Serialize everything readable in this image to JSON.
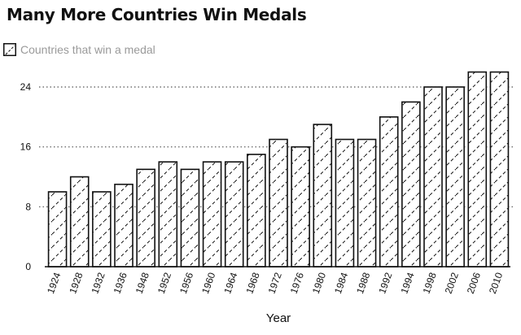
{
  "chart_data": {
    "type": "bar",
    "title": "Many More Countries Win Medals",
    "xlabel": "Year",
    "ylabel": "",
    "categories": [
      "1924",
      "1928",
      "1932",
      "1936",
      "1948",
      "1952",
      "1956",
      "1960",
      "1964",
      "1968",
      "1972",
      "1976",
      "1980",
      "1984",
      "1988",
      "1992",
      "1994",
      "1998",
      "2002",
      "2006",
      "2010"
    ],
    "series": [
      {
        "name": "Countries that win a medal",
        "values": [
          10,
          12,
          10,
          11,
          13,
          14,
          13,
          14,
          14,
          15,
          17,
          16,
          19,
          17,
          17,
          20,
          22,
          24,
          24,
          26,
          26
        ]
      }
    ],
    "ylim": [
      0,
      26
    ],
    "yticks": [
      0,
      8,
      16,
      24
    ],
    "grid": "dotted horizontal",
    "legend": "top-left",
    "pattern": "diagonal hatch",
    "colors": {
      "bar_fill": "#ffffff",
      "bar_stroke": "#111111",
      "hatch": "#111111",
      "grid": "#555555",
      "legend_text": "#9a9a9a"
    }
  }
}
